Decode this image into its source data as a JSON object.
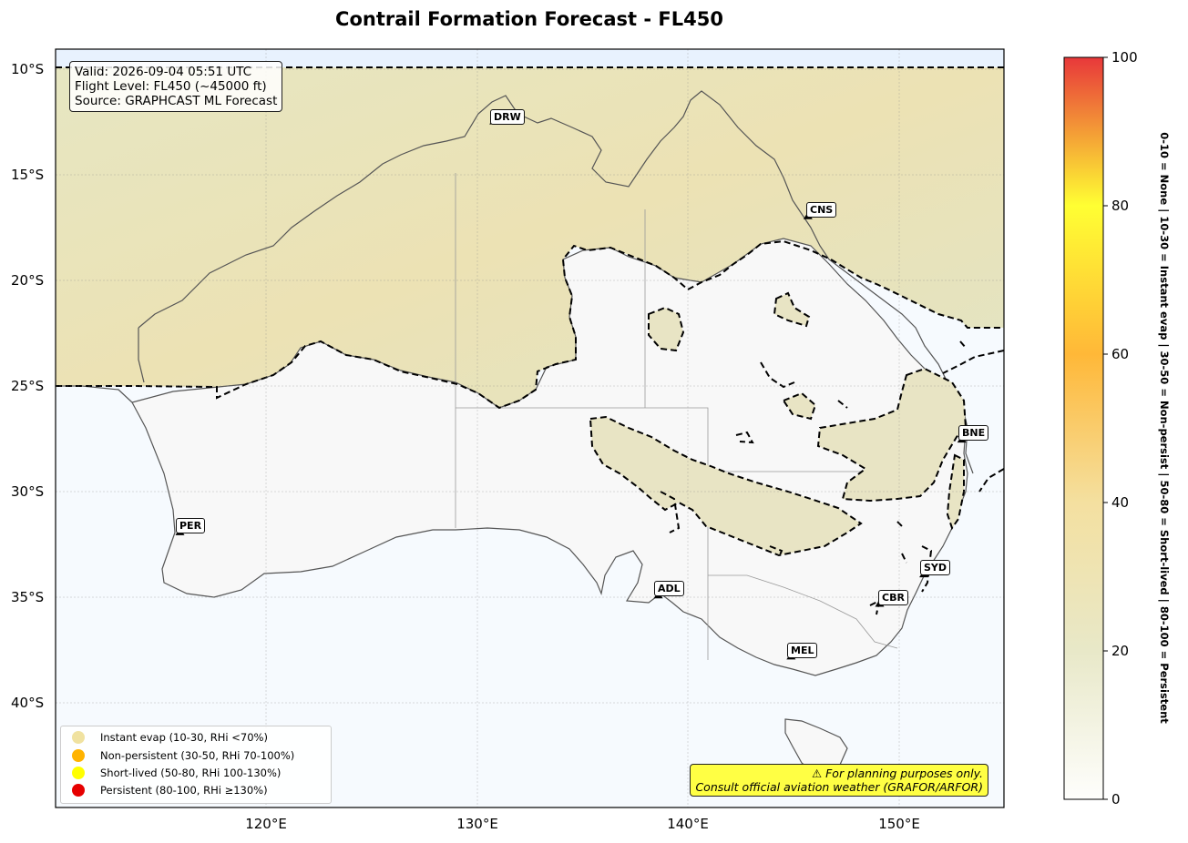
{
  "title": "Contrail Formation Forecast - FL450",
  "info": {
    "valid": "Valid: 2026-09-04 05:51 UTC",
    "flight_level": "Flight Level: FL450 (~45000 ft)",
    "source": "Source: GRAPHCAST ML Forecast"
  },
  "lat_ticks": [
    "10°S",
    "15°S",
    "20°S",
    "25°S",
    "30°S",
    "35°S",
    "40°S"
  ],
  "lon_ticks": [
    "120°E",
    "130°E",
    "140°E",
    "150°E"
  ],
  "cities": [
    {
      "code": "DRW",
      "name": "Darwin",
      "lon": 130.8,
      "lat": -12.4
    },
    {
      "code": "CNS",
      "name": "Cairns",
      "lon": 145.7,
      "lat": -16.9
    },
    {
      "code": "BNE",
      "name": "Brisbane",
      "lon": 153.0,
      "lat": -27.5
    },
    {
      "code": "PER",
      "name": "Perth",
      "lon": 115.9,
      "lat": -31.9
    },
    {
      "code": "SYD",
      "name": "Sydney",
      "lon": 151.2,
      "lat": -33.9
    },
    {
      "code": "ADL",
      "name": "Adelaide",
      "lon": 138.6,
      "lat": -34.9
    },
    {
      "code": "CBR",
      "name": "Canberra",
      "lon": 149.1,
      "lat": -35.3
    },
    {
      "code": "MEL",
      "name": "Melbourne",
      "lon": 144.9,
      "lat": -37.8
    }
  ],
  "legend": [
    {
      "label": "Instant evap (10-30, RHi <70%)",
      "color": "#f0e2a0"
    },
    {
      "label": "Non-persistent (30-50, RHi 70-100%)",
      "color": "#ffb300"
    },
    {
      "label": "Short-lived (50-80, RHi 100-130%)",
      "color": "#ffff00"
    },
    {
      "label": "Persistent (80-100, RHi ≥130%)",
      "color": "#e60000"
    }
  ],
  "warning": {
    "line1": "⚠ For planning purposes only.",
    "line2": "Consult official aviation weather (GRAFOR/ARFOR)"
  },
  "colorbar": {
    "ticks": [
      "0",
      "20",
      "40",
      "60",
      "80",
      "100"
    ],
    "label": "0-10 = None  |  10-30 = Instant evap  |  30-50 = Non-persist  |  50-80 = Short-lived  |  80-100 = Persistent",
    "colors": [
      "#fefefc",
      "#e8e8c8",
      "#f4e0a0",
      "#ffb838",
      "#ffff33",
      "#e8383a"
    ]
  },
  "map_extent": {
    "lon": [
      110,
      155
    ],
    "lat": [
      -45,
      -9
    ]
  }
}
